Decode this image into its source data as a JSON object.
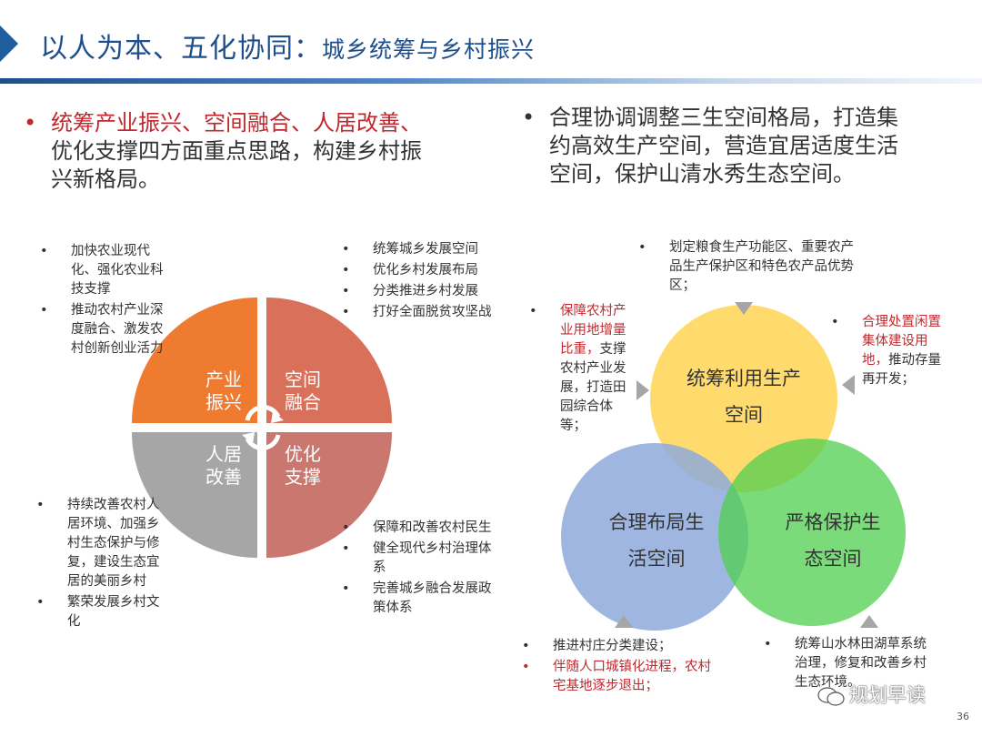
{
  "title": {
    "main": "以人为本、五化协同：",
    "sub": "城乡统筹与乡村振兴"
  },
  "intro_left": {
    "highlight": "统筹产业振兴、空间融合、人居改善、",
    "rest_line1": "优化支撑四方面重点思路，构建乡村振",
    "rest_line2": "兴新格局。"
  },
  "intro_right": {
    "line1": "合理协调调整三生空间格局，打造集",
    "line2": "约高效生产空间，营造宜居适度生活",
    "line3": "空间，保护山清水秀生态空间。"
  },
  "quadrants": [
    {
      "line1": "产业",
      "line2": "振兴",
      "color": "#ee7b30"
    },
    {
      "line1": "空间",
      "line2": "融合",
      "color": "#d9705a"
    },
    {
      "line1": "人居",
      "line2": "改善",
      "color": "#a6a6a6"
    },
    {
      "line1": "优化",
      "line2": "支撑",
      "color": "#c9776f"
    }
  ],
  "notes": {
    "top_left": [
      "加快农业现代化、强化农业科技支撑",
      "推动农村产业深度融合、激发农村创新创业活力"
    ],
    "top_right": [
      "统筹城乡发展空间",
      "优化乡村发展布局",
      "分类推进乡村发展",
      "打好全面脱贫攻坚战"
    ],
    "bottom_left": [
      "持续改善农村人居环境、加强乡村生态保护与修复，建设生态宜居的美丽乡村",
      "繁荣发展乡村文化"
    ],
    "bottom_right": [
      "保障和改善农村民生",
      "健全现代乡村治理体系",
      "完善城乡融合发展政策体系"
    ]
  },
  "venn": {
    "production": {
      "line1": "统筹利用生产",
      "line2": "空间",
      "color": "#ffd966"
    },
    "living": {
      "line1": "合理布局生",
      "line2": "活空间",
      "color": "#8eaadb"
    },
    "ecology": {
      "line1": "严格保护生",
      "line2": "态空间",
      "color": "#66dd66"
    },
    "notes": {
      "top": "划定粮食生产功能区、重要农产品生产保护区和特色农产品优势区；",
      "left_red": "保障农村产业用地增量比重，",
      "left_black": "支撑农村产业发展，打造田园综合体等；",
      "right_red": "合理处置闲置集体建设用地，",
      "right_black": "推动存量再开发；",
      "bottom_left_1": "推进村庄分类建设；",
      "bottom_left_2": "伴随人口城镇化进程，农村宅基地逐步退出；",
      "bottom_right": "统筹山水林田湖草系统治理，修复和改善乡村生态环境。"
    }
  },
  "watermark": "规划早读",
  "page_number": "36"
}
